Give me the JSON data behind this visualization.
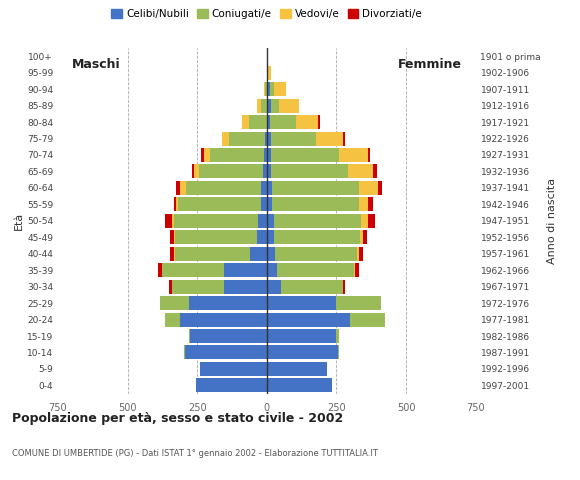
{
  "age_groups": [
    "0-4",
    "5-9",
    "10-14",
    "15-19",
    "20-24",
    "25-29",
    "30-34",
    "35-39",
    "40-44",
    "45-49",
    "50-54",
    "55-59",
    "60-64",
    "65-69",
    "70-74",
    "75-79",
    "80-84",
    "85-89",
    "90-94",
    "95-99",
    "100+"
  ],
  "birth_years": [
    "1997-2001",
    "1992-1996",
    "1987-1991",
    "1982-1986",
    "1977-1981",
    "1972-1976",
    "1967-1971",
    "1962-1966",
    "1957-1961",
    "1952-1956",
    "1947-1951",
    "1942-1946",
    "1937-1941",
    "1932-1936",
    "1927-1931",
    "1922-1926",
    "1917-1921",
    "1912-1916",
    "1907-1911",
    "1902-1906",
    "1901 o prima"
  ],
  "males": {
    "celibe": [
      255,
      240,
      295,
      275,
      310,
      280,
      155,
      155,
      60,
      35,
      30,
      20,
      20,
      15,
      10,
      5,
      0,
      0,
      0,
      0,
      0
    ],
    "coniugato": [
      0,
      0,
      2,
      5,
      55,
      105,
      185,
      220,
      270,
      295,
      305,
      300,
      270,
      230,
      195,
      130,
      65,
      20,
      5,
      0,
      0
    ],
    "vedovo": [
      0,
      0,
      0,
      0,
      0,
      0,
      0,
      0,
      2,
      3,
      5,
      5,
      20,
      15,
      20,
      25,
      25,
      15,
      5,
      0,
      0
    ],
    "divorziato": [
      0,
      0,
      0,
      0,
      0,
      0,
      10,
      15,
      15,
      15,
      25,
      10,
      15,
      10,
      10,
      0,
      0,
      0,
      0,
      0,
      0
    ]
  },
  "females": {
    "nubile": [
      235,
      215,
      255,
      250,
      300,
      250,
      50,
      35,
      30,
      25,
      25,
      20,
      20,
      15,
      15,
      15,
      10,
      15,
      10,
      2,
      0
    ],
    "coniugata": [
      0,
      0,
      3,
      10,
      125,
      160,
      225,
      280,
      295,
      310,
      315,
      310,
      310,
      275,
      245,
      160,
      95,
      30,
      15,
      2,
      0
    ],
    "vedova": [
      0,
      0,
      0,
      0,
      0,
      0,
      0,
      2,
      5,
      10,
      25,
      35,
      70,
      90,
      105,
      100,
      80,
      70,
      45,
      10,
      0
    ],
    "divorziata": [
      0,
      0,
      0,
      0,
      0,
      0,
      5,
      15,
      15,
      15,
      25,
      15,
      15,
      15,
      5,
      5,
      5,
      0,
      0,
      0,
      0
    ]
  },
  "colors": {
    "celibe": "#4472c4",
    "coniugato": "#9bbb59",
    "vedovo": "#f5c242",
    "divorziato": "#cc0000"
  },
  "xlim": 750,
  "title": "Popolazione per età, sesso e stato civile - 2002",
  "subtitle": "COMUNE DI UMBERTIDE (PG) - Dati ISTAT 1° gennaio 2002 - Elaborazione TUTTITALIA.IT",
  "legend_labels": [
    "Celibi/Nubili",
    "Coniugati/e",
    "Vedovi/e",
    "Divorziati/e"
  ],
  "ylabel": "Età",
  "maschi_label": "Maschi",
  "femmine_label": "Femmine",
  "anno_label": "Anno di nascita",
  "background_color": "#ffffff",
  "bar_height": 0.85
}
